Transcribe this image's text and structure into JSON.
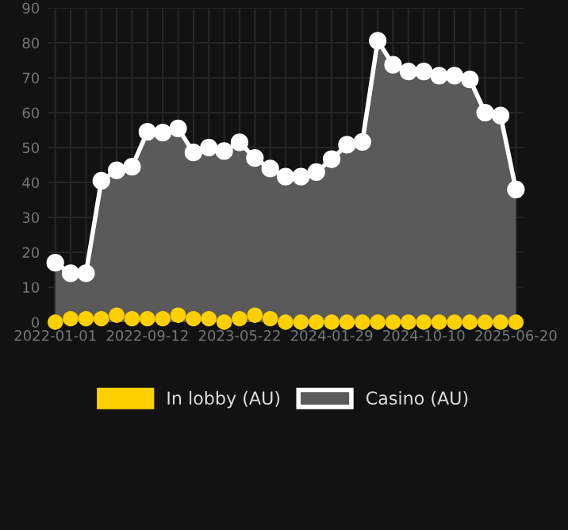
{
  "chart_data": {
    "type": "area",
    "categories": [
      "2022-01-01",
      null,
      null,
      null,
      null,
      null,
      "2022-09-12",
      null,
      null,
      null,
      null,
      null,
      "2023-05-22",
      null,
      null,
      null,
      null,
      null,
      "2024-01-29",
      null,
      null,
      null,
      null,
      null,
      "2024-10-10",
      null,
      null,
      null,
      null,
      null,
      "2025-06-20"
    ],
    "series": [
      {
        "name": "In lobby (AU)",
        "type": "scatter",
        "color": "#ffd000",
        "values": [
          0,
          1,
          1,
          1,
          2,
          1,
          1,
          1,
          2,
          1,
          1,
          0,
          1,
          2,
          1,
          0,
          0,
          0,
          0,
          0,
          0,
          0,
          0,
          0,
          0,
          0,
          0,
          0,
          0,
          0,
          0
        ]
      },
      {
        "name": "Casino (AU)",
        "color": "#ffffff",
        "values": [
          17,
          14,
          14,
          40.5,
          43.5,
          44.5,
          54.5,
          54.3,
          55.5,
          48.6,
          50,
          49,
          51.5,
          47,
          44,
          41.7,
          41.7,
          43,
          46.7,
          50.8,
          51.6,
          80.6,
          73.7,
          71.8,
          71.8,
          70.6,
          70.6,
          69.5,
          60,
          59.2,
          38
        ]
      }
    ],
    "ylim": [
      0,
      90
    ],
    "yticks": [
      0,
      10,
      20,
      30,
      40,
      50,
      60,
      70,
      80,
      90
    ],
    "grid": true,
    "legend": "bottom",
    "marker": "circle"
  }
}
